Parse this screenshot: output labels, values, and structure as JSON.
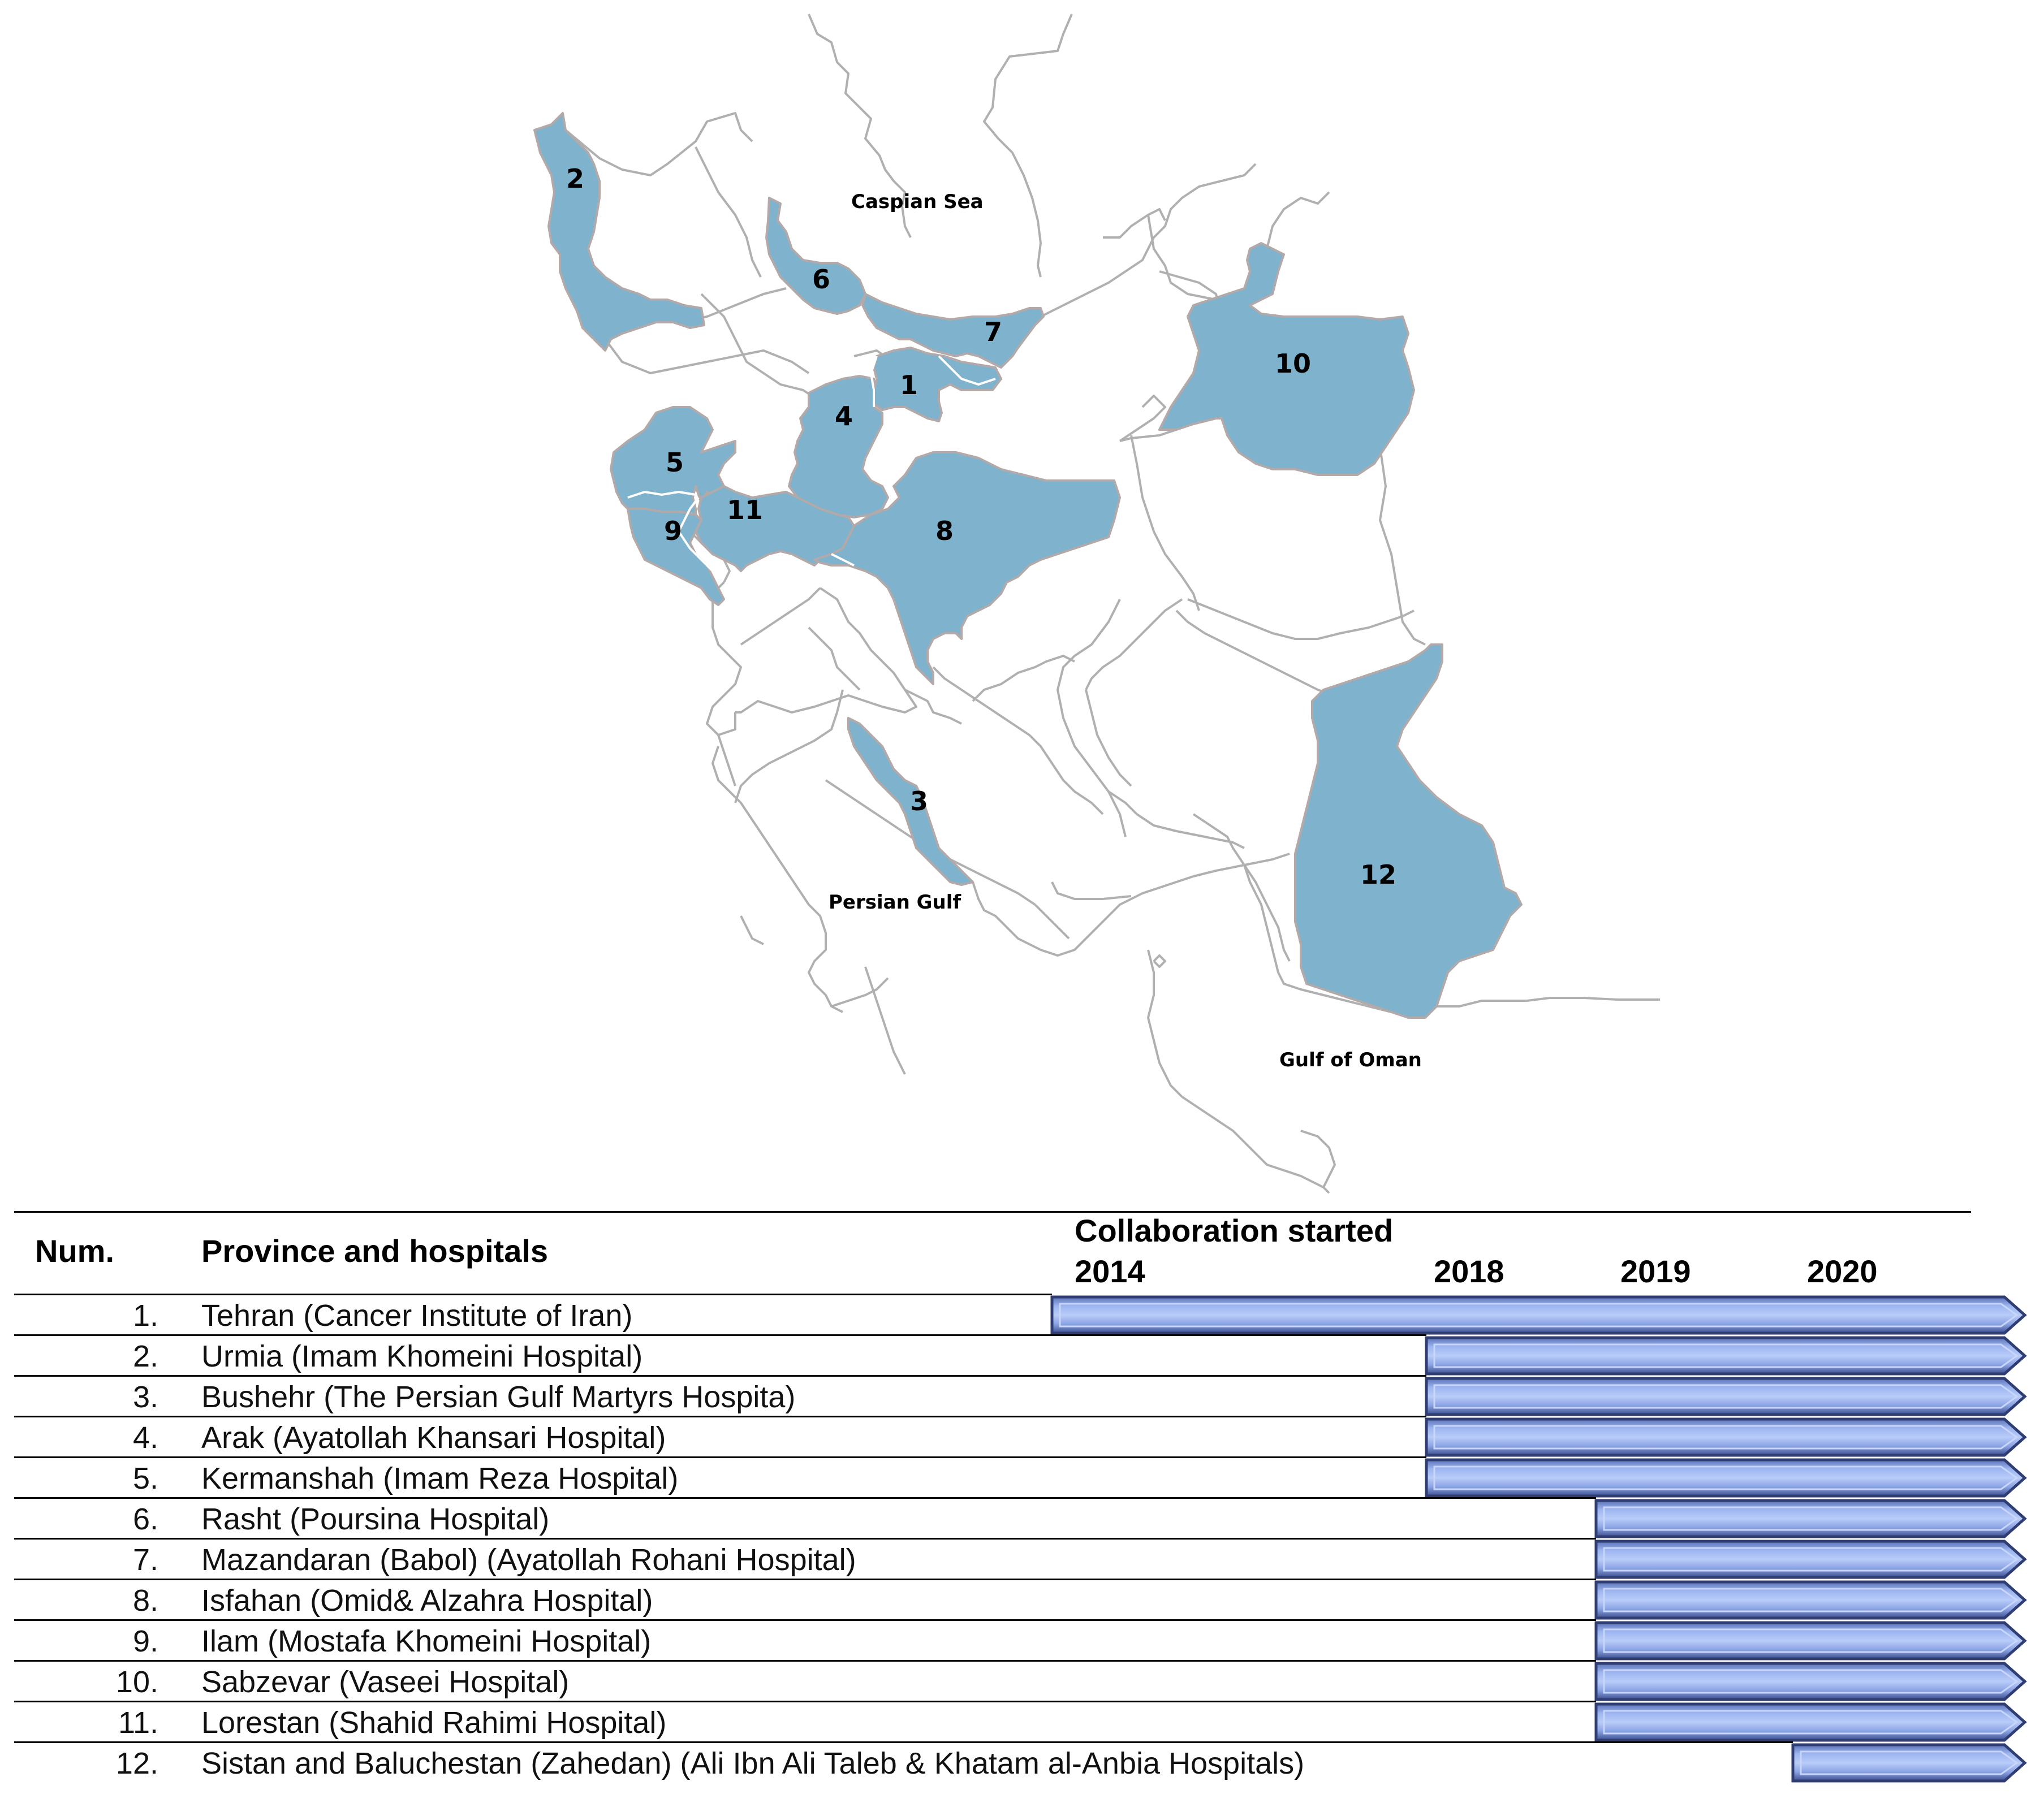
{
  "map": {
    "sea_labels": {
      "caspian": "Caspian Sea",
      "persian_gulf": "Persian Gulf",
      "gulf_of_oman": "Gulf of Oman"
    },
    "highlight_color": "#7fb2cc",
    "region_numbers": [
      "1",
      "2",
      "3",
      "4",
      "5",
      "6",
      "7",
      "8",
      "9",
      "10",
      "11",
      "12"
    ]
  },
  "table": {
    "headers": {
      "num": "Num.",
      "province": "Province and hospitals",
      "collab": "Collaboration started"
    },
    "years": [
      "2014",
      "2018",
      "2019",
      "2020"
    ],
    "rows": [
      {
        "num": "1.",
        "name": "Tehran (Cancer Institute of Iran)",
        "start": "2014"
      },
      {
        "num": "2.",
        "name": "Urmia (Imam Khomeini Hospital)",
        "start": "2018"
      },
      {
        "num": "3.",
        "name": "Bushehr (The Persian Gulf Martyrs Hospita)",
        "start": "2018"
      },
      {
        "num": "4.",
        "name": "Arak (Ayatollah Khansari Hospital)",
        "start": "2018"
      },
      {
        "num": "5.",
        "name": "Kermanshah (Imam Reza Hospital)",
        "start": "2018"
      },
      {
        "num": "6.",
        "name": "Rasht (Poursina Hospital)",
        "start": "2019"
      },
      {
        "num": "7.",
        "name": "Mazandaran (Babol) (Ayatollah Rohani Hospital)",
        "start": "2019"
      },
      {
        "num": "8.",
        "name": "Isfahan (Omid& Alzahra Hospital)",
        "start": "2019"
      },
      {
        "num": "9.",
        "name": "Ilam (Mostafa Khomeini Hospital)",
        "start": "2019"
      },
      {
        "num": "10.",
        "name": "Sabzevar (Vaseei Hospital)",
        "start": "2019"
      },
      {
        "num": "11.",
        "name": "Lorestan (Shahid Rahimi Hospital)",
        "start": "2019"
      },
      {
        "num": "12.",
        "name": "Sistan and Baluchestan (Zahedan) (Ali Ibn Ali Taleb & Khatam al-Anbia Hospitals)",
        "start": "2020"
      }
    ],
    "bar_color": "#7d9be0"
  }
}
